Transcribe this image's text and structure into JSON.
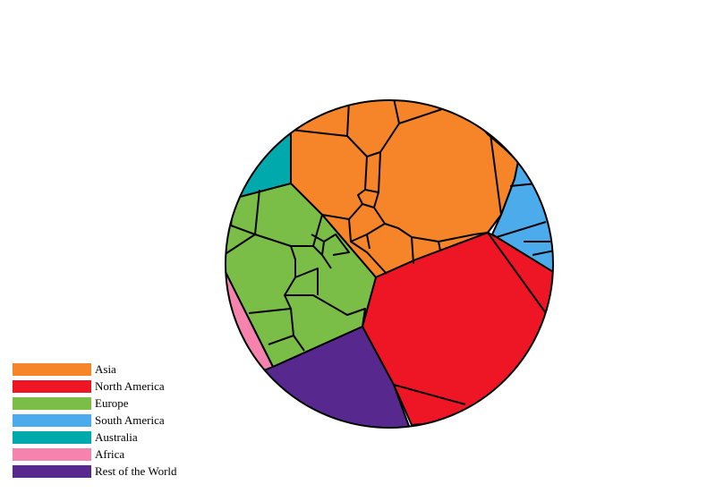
{
  "chart_data": {
    "type": "voronoi-treemap",
    "title": "",
    "groups": [
      {
        "name": "Asia",
        "color": "#f6852a"
      },
      {
        "name": "North America",
        "color": "#ee1624"
      },
      {
        "name": "Europe",
        "color": "#7abd47"
      },
      {
        "name": "South America",
        "color": "#4babeb"
      },
      {
        "name": "Australia",
        "color": "#00aaac"
      },
      {
        "name": "Africa",
        "color": "#f683ad"
      },
      {
        "name": "Rest of the World",
        "color": "#57298e"
      }
    ],
    "legend_position": "bottom-left"
  }
}
